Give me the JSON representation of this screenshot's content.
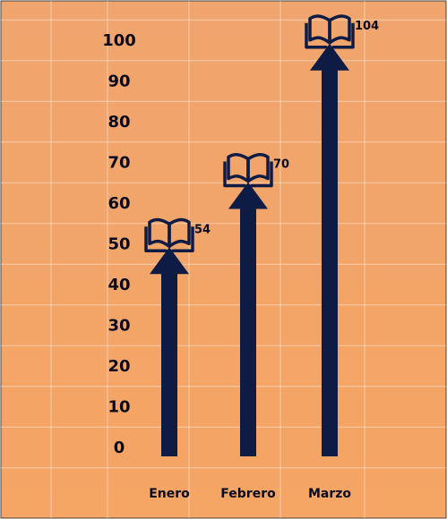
{
  "chart_data": {
    "type": "bar",
    "title": "",
    "xlabel": "",
    "ylabel": "",
    "categories": [
      "Enero",
      "Febrero",
      "Marzo"
    ],
    "values": [
      54,
      70,
      104
    ],
    "y_ticks": [
      "0",
      "10",
      "20",
      "30",
      "40",
      "50",
      "60",
      "70",
      "80",
      "90",
      "100"
    ],
    "ylim": [
      0,
      100
    ],
    "grid": true,
    "data_labels": [
      "54",
      "70",
      "104"
    ],
    "mark_style": "arrow with book icon on top",
    "icon": "open-book-icon",
    "colors": {
      "background_top": "#f0a56e",
      "background_bottom": "#f5a564",
      "bar": "#0d1b45",
      "text": "#0a0a1e",
      "frame": "#444444"
    }
  }
}
